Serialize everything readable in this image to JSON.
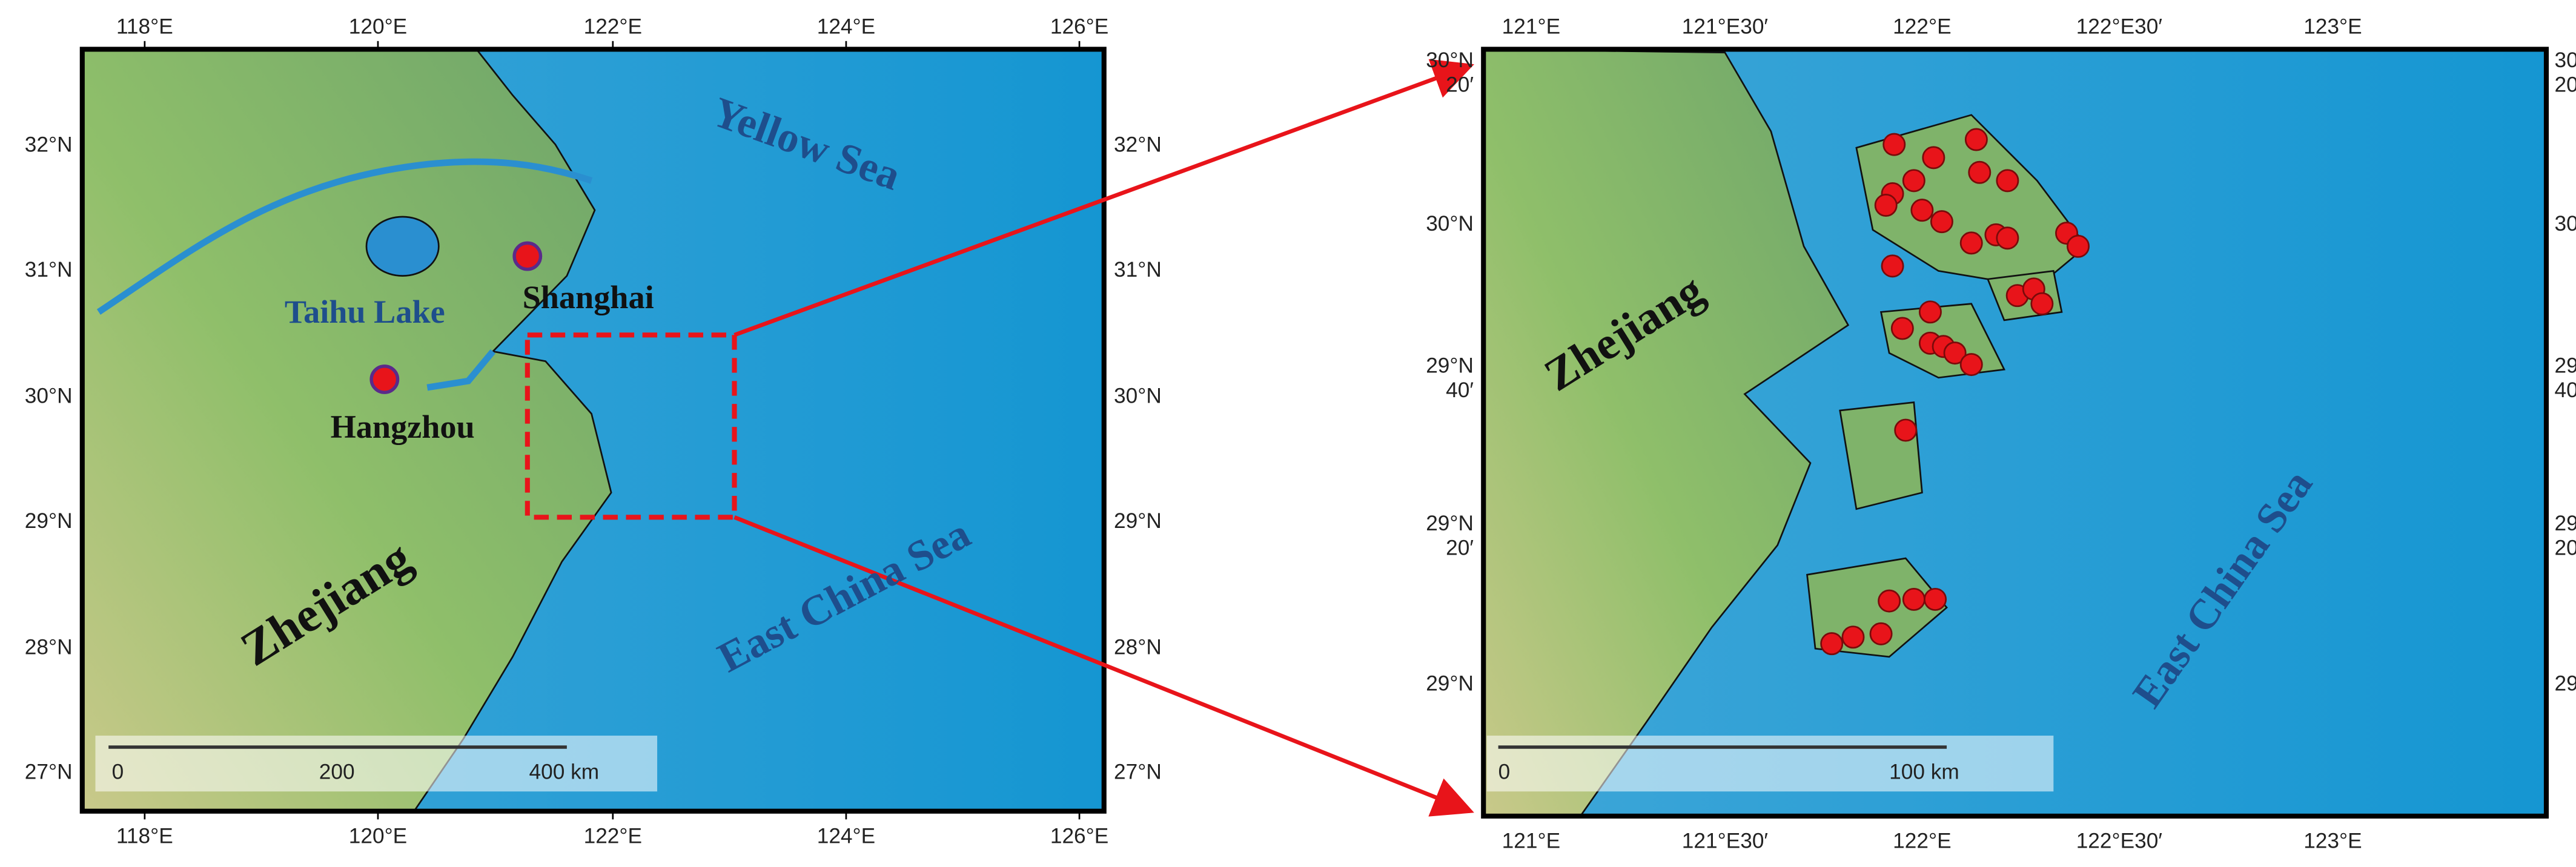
{
  "left_map": {
    "lon_ticks": [
      "118°E",
      "120°E",
      "122°E",
      "124°E",
      "126°E"
    ],
    "lat_ticks": [
      "32°N",
      "31°N",
      "30°N",
      "29°N",
      "28°N",
      "27°N"
    ],
    "places": [
      "Yellow Sea",
      "Taihu Lake",
      "Shanghai",
      "Hangzhou",
      "Zhejiang",
      "East China Sea"
    ],
    "scale_bar": [
      "0",
      "200",
      "400 km"
    ]
  },
  "right_map": {
    "lon_ticks": [
      "121°E",
      "121°E30′",
      "122°E",
      "122°E30′",
      "123°E"
    ],
    "lat_ticks": [
      [
        "30°N",
        "20′"
      ],
      [
        "30°N"
      ],
      [
        "29°N",
        "40′"
      ],
      [
        "29°N",
        "20′"
      ],
      [
        "29°N"
      ]
    ],
    "places": [
      "Zhejiang",
      "East China Sea"
    ],
    "scale_bar": [
      "0",
      "100 km"
    ]
  }
}
